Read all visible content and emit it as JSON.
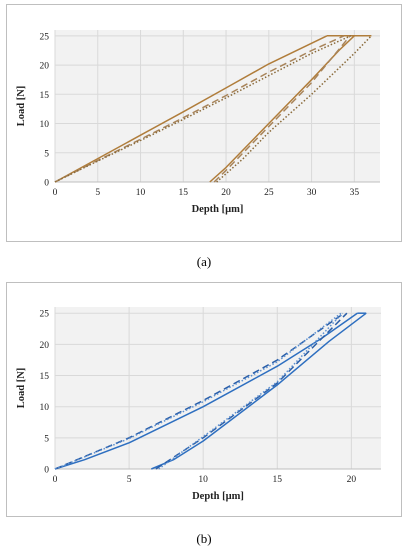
{
  "chart_data": [
    {
      "type": "line",
      "panel": "a",
      "xlabel": "Depth [µm]",
      "ylabel": "Load [N]",
      "xlim": [
        0,
        38
      ],
      "ylim": [
        0,
        26
      ],
      "xticks": [
        0,
        5,
        10,
        15,
        20,
        25,
        30,
        35
      ],
      "yticks": [
        0,
        5,
        10,
        15,
        20,
        25
      ],
      "grid": true,
      "plot_background": "#f2f2f2",
      "series": [
        {
          "style": "solid",
          "color": "#b07d3b",
          "loading": [
            [
              0,
              0
            ],
            [
              5,
              4
            ],
            [
              10,
              8
            ],
            [
              15,
              12
            ],
            [
              20,
              16.1
            ],
            [
              25,
              20.2
            ],
            [
              31.8,
              25
            ]
          ],
          "hold": [
            [
              31.8,
              25
            ],
            [
              37,
              25
            ]
          ],
          "unloading": [
            [
              18.1,
              0
            ],
            [
              20,
              2.5
            ],
            [
              25,
              10
            ],
            [
              30,
              17.5
            ],
            [
              33.2,
              22.5
            ],
            [
              35,
              25
            ]
          ]
        },
        {
          "style": "dashed",
          "color": "#a8845a",
          "loading": [
            [
              0,
              0
            ],
            [
              5,
              3.7
            ],
            [
              10,
              7.3
            ],
            [
              15,
              11
            ],
            [
              20,
              14.8
            ],
            [
              25,
              18.8
            ],
            [
              30,
              22.5
            ],
            [
              33.8,
              25
            ]
          ],
          "unloading": [
            [
              18.6,
              0
            ],
            [
              20,
              2
            ],
            [
              25,
              9.5
            ],
            [
              30,
              17
            ],
            [
              34.5,
              25
            ]
          ]
        },
        {
          "style": "dotted",
          "color": "#8a6a3a",
          "loading": [
            [
              0,
              0
            ],
            [
              5,
              3.6
            ],
            [
              10,
              7.1
            ],
            [
              15,
              10.7
            ],
            [
              20,
              14.4
            ],
            [
              25,
              18.2
            ],
            [
              30,
              22
            ],
            [
              34.6,
              25
            ]
          ],
          "unloading": [
            [
              18.9,
              0
            ],
            [
              22,
              4
            ],
            [
              25,
              8.5
            ],
            [
              30,
              15
            ],
            [
              35,
              22
            ],
            [
              37,
              25
            ]
          ]
        }
      ]
    },
    {
      "type": "line",
      "panel": "b",
      "xlabel": "Depth [µm]",
      "ylabel": "Load [N]",
      "xlim": [
        0,
        22
      ],
      "ylim": [
        0,
        26
      ],
      "xticks": [
        0,
        5,
        10,
        15,
        20
      ],
      "yticks": [
        0,
        5,
        10,
        15,
        20,
        25
      ],
      "grid": true,
      "plot_background": "#f2f2f2",
      "series": [
        {
          "style": "solid",
          "color": "#2e6fc0",
          "loading": [
            [
              0,
              0
            ],
            [
              2,
              1.5
            ],
            [
              5,
              4.2
            ],
            [
              10,
              10
            ],
            [
              15,
              16.5
            ],
            [
              18,
              21
            ],
            [
              20.4,
              25
            ]
          ],
          "hold": [
            [
              20.4,
              25
            ],
            [
              21,
              25
            ]
          ],
          "unloading": [
            [
              6.5,
              0
            ],
            [
              8,
              1.5
            ],
            [
              10,
              4.5
            ],
            [
              15,
              13.5
            ],
            [
              18.5,
              20.5
            ],
            [
              21,
              25
            ]
          ]
        },
        {
          "style": "dashed",
          "color": "#2a5ea8",
          "loading": [
            [
              0,
              0
            ],
            [
              5,
              5
            ],
            [
              10,
              11
            ],
            [
              15,
              17.5
            ],
            [
              19.5,
              25
            ]
          ],
          "unloading": [
            [
              6.8,
              0
            ],
            [
              10,
              5
            ],
            [
              15,
              13.8
            ],
            [
              19.7,
              25
            ]
          ]
        },
        {
          "style": "dotted",
          "color": "#5b8fd0",
          "loading": [
            [
              0,
              0
            ],
            [
              5,
              4.9
            ],
            [
              10,
              10.8
            ],
            [
              15,
              17.2
            ],
            [
              19.3,
              25
            ]
          ],
          "unloading": [
            [
              7,
              0
            ],
            [
              10,
              5.2
            ],
            [
              15,
              14
            ],
            [
              19.4,
              25
            ]
          ]
        }
      ]
    }
  ],
  "captions": {
    "a": "(a)",
    "b": "(b)"
  }
}
